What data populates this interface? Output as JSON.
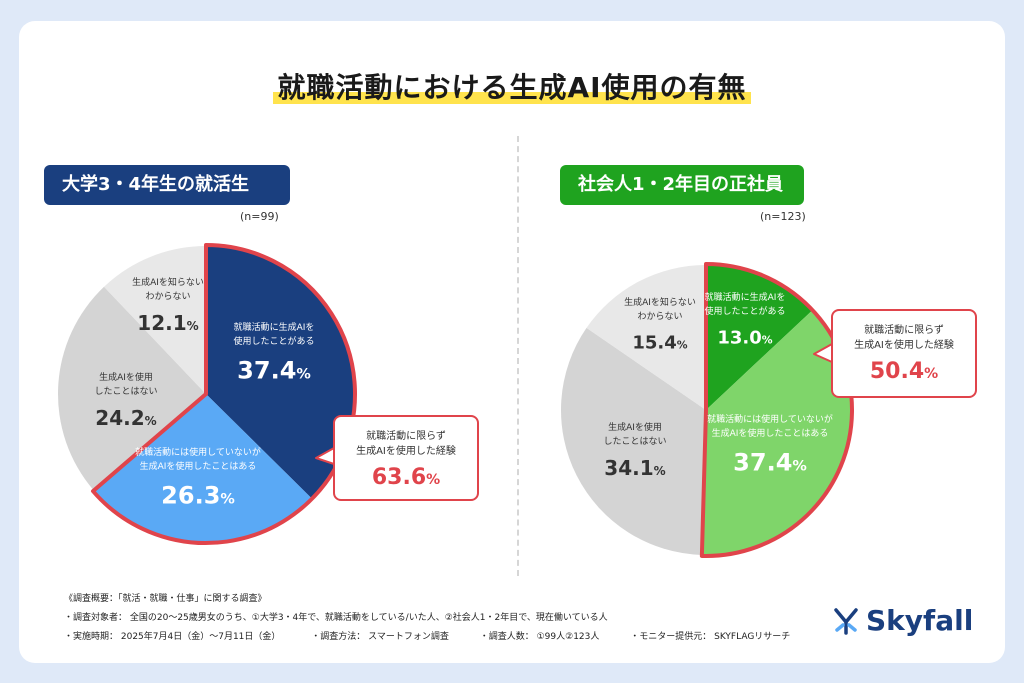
{
  "title": "就職活動における生成AI使用の有無",
  "colors": {
    "navy": "#1a3f7f",
    "light_blue": "#5aa9f5",
    "gray_mid": "#d4d4d4",
    "gray_light": "#e8e8e8",
    "green_dark": "#1fa31f",
    "green_light": "#7fd56a",
    "red": "#e0444b"
  },
  "left_panel": {
    "label": "大学3・4年生の就活生",
    "n": "(n=99)"
  },
  "right_panel": {
    "label": "社会人1・2年目の正社員",
    "n": "(n=123)"
  },
  "chart_data": [
    {
      "type": "pie",
      "title": "大学3・4年生の就活生",
      "n": "(n=99)",
      "slices": [
        {
          "label": "就職活動に生成AIを使用したことがある",
          "value": 37.4,
          "color": "#1a3f7f"
        },
        {
          "label": "就職活動には使用していないが生成AIを使用したことはある",
          "value": 26.3,
          "color": "#5aa9f5"
        },
        {
          "label": "生成AIを使用したことはない",
          "value": 24.2,
          "color": "#d4d4d4"
        },
        {
          "label": "生成AIを知らないわからない",
          "value": 12.1,
          "color": "#e8e8e8"
        }
      ],
      "callout": {
        "label": "就職活動に限らず\n生成AIを使用した経験",
        "value": "63.6"
      }
    },
    {
      "type": "pie",
      "title": "社会人1・2年目の正社員",
      "n": "(n=123)",
      "slices": [
        {
          "label": "就職活動に生成AIを使用したことがある",
          "value": 13.0,
          "color": "#1fa31f"
        },
        {
          "label": "就職活動には使用していないが生成AIを使用したことはある",
          "value": 37.4,
          "color": "#7fd56a"
        },
        {
          "label": "生成AIを使用したことはない",
          "value": 34.1,
          "color": "#d4d4d4"
        },
        {
          "label": "生成AIを知らないわからない",
          "value": 15.4,
          "color": "#e8e8e8"
        }
      ],
      "callout": {
        "label": "就職活動に限らず\n生成AIを使用した経験",
        "value": "50.4"
      }
    }
  ],
  "footer": {
    "heading": "《調査概要：「就活・就職・仕事」に関する調査》",
    "target": "・調査対象者： 全国の20〜25歳男女のうち、①大学3・4年で、就職活動をしている/いた人、②社会人1・2年目で、現在働いている人",
    "period": "・実施時期： 2025年7月4日（金）〜7月11日（金）",
    "method": "・調査方法： スマートフォン調査",
    "count": "・調査人数： ①99人②123人",
    "monitor": "・モニター提供元： SKYFLAGリサーチ"
  },
  "logo": {
    "text": "Skyfall",
    "icon": "skyfall-logo-icon"
  }
}
